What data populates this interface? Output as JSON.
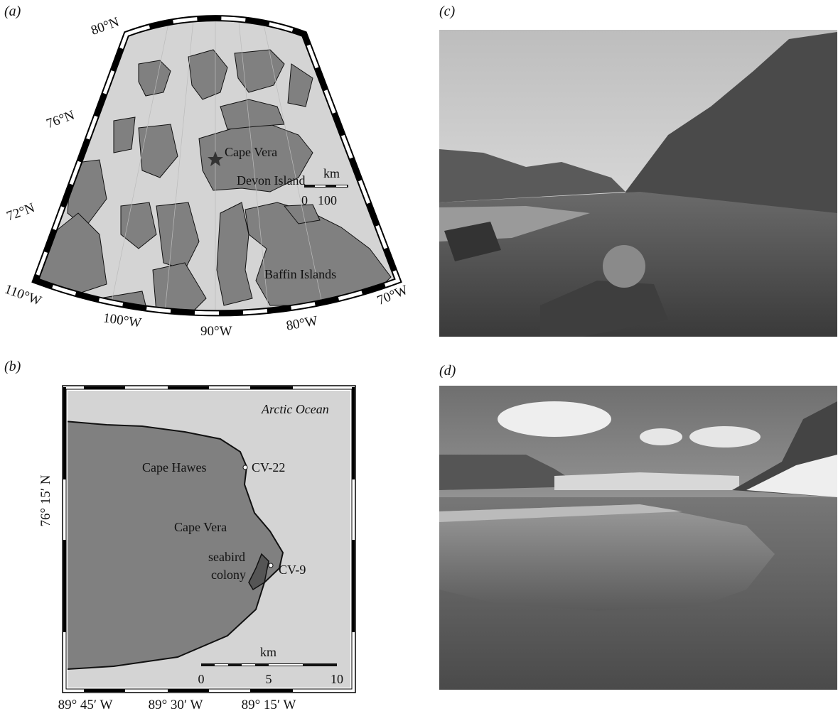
{
  "panel_a": {
    "label": "(a)",
    "latitudes": [
      "80°N",
      "76°N",
      "72°N"
    ],
    "longitudes": [
      "110°W",
      "100°W",
      "90°W",
      "80°W",
      "70°W"
    ],
    "places": {
      "cape_vera": "Cape Vera",
      "devon": "Devon Island",
      "baffin": "Baffin Islands"
    },
    "scale": {
      "unit": "km",
      "ticks": [
        0,
        100
      ]
    }
  },
  "panel_b": {
    "label": "(b)",
    "ocean": "Arctic Ocean",
    "places": {
      "cape_hawes": "Cape Hawes",
      "cv22": "CV-22",
      "cape_vera": "Cape Vera",
      "colony": [
        "seabird",
        "colony"
      ],
      "cv9": "CV-9"
    },
    "latitude": "76° 15′ N",
    "longitudes": [
      "89° 45′ W",
      "89° 30′ W",
      "89° 15′ W"
    ],
    "scale": {
      "unit": "km",
      "ticks": [
        0,
        5,
        10
      ]
    }
  },
  "panel_c": {
    "label": "(c)"
  },
  "panel_d": {
    "label": "(d)"
  }
}
